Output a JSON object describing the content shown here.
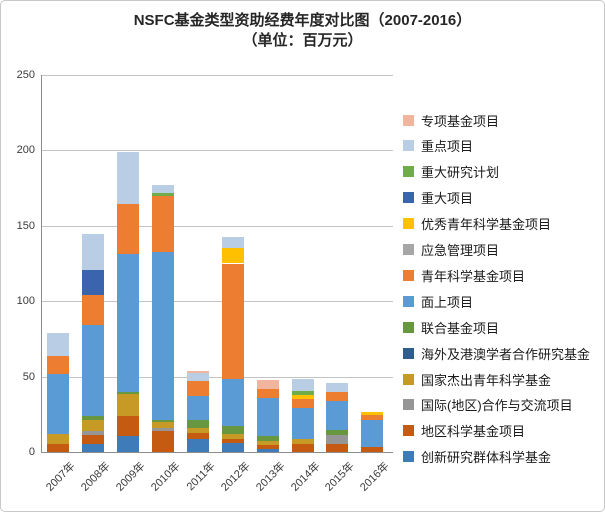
{
  "title": "NSFC基金类型资助经费年度对比图（2007-2016）",
  "subtitle": "（单位：百万元）",
  "chart_data": {
    "type": "bar",
    "stacked": true,
    "title": "NSFC基金类型资助经费年度对比图（2007-2016）",
    "subtitle": "（单位：百万元）",
    "unit": "百万元",
    "categories": [
      "2007年",
      "2008年",
      "2009年",
      "2010年",
      "2011年",
      "2012年",
      "2013年",
      "2014年",
      "2015年",
      "2016年"
    ],
    "ylim": [
      0,
      250
    ],
    "yticks": [
      0,
      50,
      100,
      150,
      200,
      250
    ],
    "grid": true,
    "legend_position": "right",
    "series_bottom_to_top": [
      {
        "name": "创新研究群体科学基金",
        "color": "#3E7CB9",
        "values": [
          0,
          5,
          10.5,
          0,
          8.5,
          6,
          2,
          0,
          0,
          0
        ]
      },
      {
        "name": "地区科学基金项目",
        "color": "#C55A11",
        "values": [
          5.5,
          6.5,
          13.5,
          14,
          4,
          2.5,
          2.5,
          5,
          5.5,
          3
        ]
      },
      {
        "name": "国际(地区)合作与交流项目",
        "color": "#969696",
        "values": [
          0,
          2.5,
          0,
          2,
          0,
          0,
          0,
          0,
          5.5,
          0
        ]
      },
      {
        "name": "国家杰出青年科学基金",
        "color": "#C69A25",
        "values": [
          6.5,
          7.5,
          14.5,
          4,
          3.5,
          3.5,
          3,
          3.5,
          0,
          0
        ]
      },
      {
        "name": "海外及港澳学者合作研究基金",
        "color": "#2E5F8C",
        "values": [
          0,
          0,
          0,
          0,
          0,
          0,
          0,
          0,
          0,
          0
        ]
      },
      {
        "name": "联合基金项目",
        "color": "#67973E",
        "values": [
          0,
          2.5,
          1.5,
          1.5,
          5,
          5.5,
          3,
          0,
          3.5,
          0
        ]
      },
      {
        "name": "面上项目",
        "color": "#5B9BD5",
        "values": [
          39.5,
          60.5,
          91.5,
          111,
          16,
          31,
          25,
          21,
          19,
          18
        ]
      },
      {
        "name": "青年科学基金项目",
        "color": "#ED7D31",
        "values": [
          12,
          19.5,
          33,
          37.5,
          10,
          76.5,
          6.5,
          5.5,
          6,
          3.5
        ]
      },
      {
        "name": "应急管理项目",
        "color": "#A6A6A6",
        "values": [
          0,
          0,
          0,
          0,
          0,
          0,
          0,
          0,
          0,
          0
        ]
      },
      {
        "name": "优秀青年科学基金项目",
        "color": "#FFC000",
        "values": [
          0,
          0,
          0,
          0,
          0,
          10,
          0,
          3,
          0,
          2
        ]
      },
      {
        "name": "重大项目",
        "color": "#3A64AD",
        "values": [
          0,
          16.5,
          0,
          0,
          0,
          0,
          0,
          0,
          0,
          0
        ]
      },
      {
        "name": "重大研究计划",
        "color": "#71AD47",
        "values": [
          0,
          0,
          0,
          2,
          0,
          0,
          0,
          2.5,
          0,
          0
        ]
      },
      {
        "name": "重点项目",
        "color": "#B9CDE5",
        "values": [
          15.5,
          24,
          34.5,
          5,
          5.5,
          7.5,
          0,
          8,
          6,
          0
        ]
      },
      {
        "name": "专项基金项目",
        "color": "#F1B59E",
        "values": [
          0,
          0,
          0,
          0,
          1.5,
          0,
          6,
          0,
          0,
          0
        ]
      }
    ]
  }
}
